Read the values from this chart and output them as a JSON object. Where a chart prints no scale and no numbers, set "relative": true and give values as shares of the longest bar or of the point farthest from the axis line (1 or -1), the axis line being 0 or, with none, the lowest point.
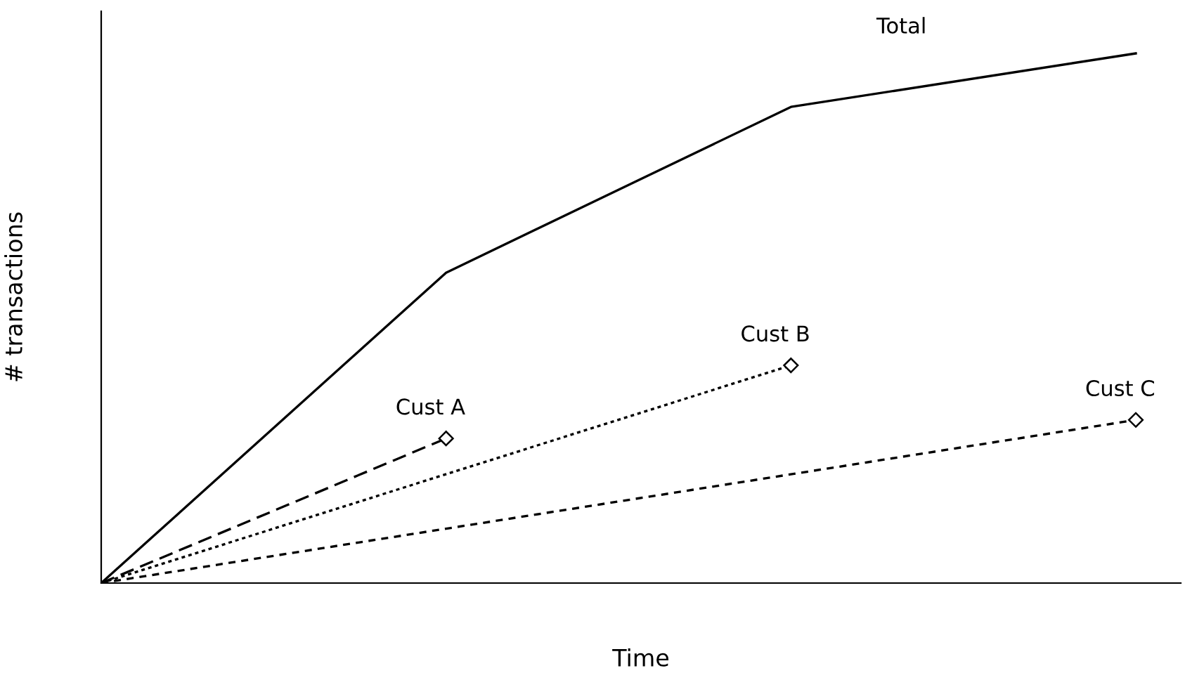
{
  "chart_data": {
    "type": "line",
    "relative": true,
    "xlabel": "Time",
    "ylabel": "# transactions",
    "categories": [
      null,
      null,
      null,
      null
    ],
    "legend": false,
    "grid": false,
    "series": [
      {
        "name": "Total",
        "color": "#000000",
        "values": [
          0,
          0.586,
          0.899,
          1
        ],
        "line_style": "solid",
        "marker": "none"
      },
      {
        "name": "Cust A",
        "color": "#000000",
        "values": [
          0,
          0.273,
          null,
          null
        ],
        "line_style": "dashed",
        "marker": "diamond"
      },
      {
        "name": "Cust B",
        "color": "#000000",
        "values": [
          0,
          null,
          0.411,
          null
        ],
        "line_style": "dotted",
        "marker": "diamond"
      },
      {
        "name": "Cust C",
        "color": "#000000",
        "values": [
          0,
          null,
          null,
          0.308
        ],
        "line_style": "dashed",
        "marker": "diamond"
      }
    ]
  }
}
